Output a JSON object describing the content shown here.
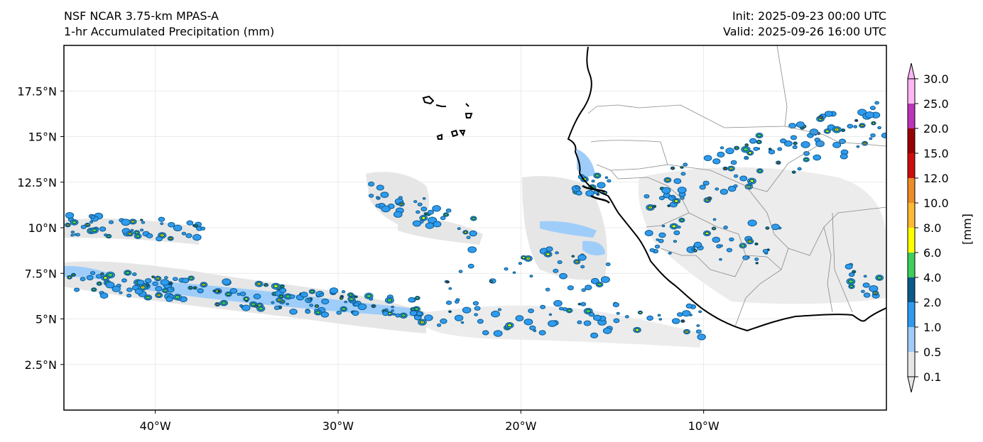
{
  "header": {
    "model": "NSF NCAR 3.75-km MPAS-A",
    "field": "1-hr Accumulated Precipitation (mm)",
    "init": "Init: 2025-09-23 00:00 UTC",
    "valid": "Valid: 2025-09-26 16:00 UTC"
  },
  "map": {
    "lon_range": [
      -45,
      0
    ],
    "lat_range": [
      0,
      20
    ],
    "lon_ticks": [
      {
        "value": -40,
        "label": "40°W"
      },
      {
        "value": -30,
        "label": "30°W"
      },
      {
        "value": -20,
        "label": "20°W"
      },
      {
        "value": -10,
        "label": "10°W"
      }
    ],
    "lat_ticks": [
      {
        "value": 2.5,
        "label": "2.5°N"
      },
      {
        "value": 5,
        "label": "5°N"
      },
      {
        "value": 7.5,
        "label": "7.5°N"
      },
      {
        "value": 10,
        "label": "10°N"
      },
      {
        "value": 12.5,
        "label": "12.5°N"
      },
      {
        "value": 15,
        "label": "15°N"
      },
      {
        "value": 17.5,
        "label": "17.5°N"
      }
    ],
    "gridlines": true
  },
  "colorbar": {
    "units": "[mm]",
    "levels": [
      "0.1",
      "0.5",
      "1.0",
      "2.0",
      "4.0",
      "6.0",
      "8.0",
      "10.0",
      "12.0",
      "15.0",
      "20.0",
      "25.0",
      "30.0"
    ],
    "colors": [
      "#e6e6e6",
      "#9fcdfa",
      "#2f9bf0",
      "#0b5a8c",
      "#3ccf5a",
      "#ffff00",
      "#ffba33",
      "#ec8c26",
      "#cc0d0d",
      "#990000",
      "#bb33bb",
      "#ffb6f5"
    ],
    "extend": "both"
  }
}
